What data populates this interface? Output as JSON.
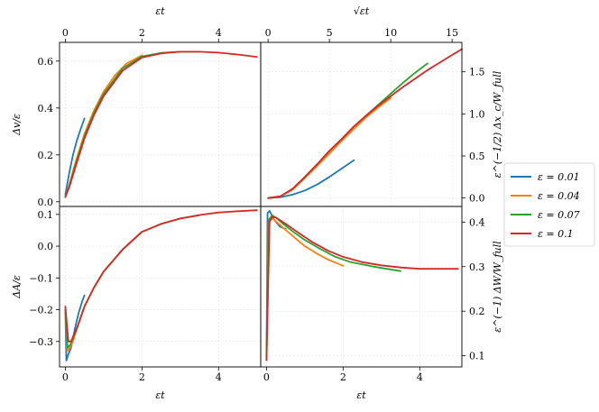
{
  "colors": {
    "eps_0.01": "#1f77b4",
    "eps_0.04": "#ff7f0e",
    "eps_0.07": "#2ca02c",
    "eps_0.1": "#d62728"
  },
  "legend": {
    "placement": "right",
    "entries": [
      "ε = 0.01",
      "ε = 0.04",
      "ε = 0.07",
      "ε = 0.1"
    ]
  },
  "chart_data": [
    {
      "id": "top-left",
      "type": "line",
      "title": "",
      "xlabel": "εt",
      "ylabel": "Δv/ε",
      "xlim": [
        -0.15,
        5.1
      ],
      "ylim": [
        -0.02,
        0.68
      ],
      "xticks": [
        "0",
        "2",
        "4"
      ],
      "xtick_values": [
        0,
        2,
        4
      ],
      "yticks": [
        "0.0",
        "0.2",
        "0.4",
        "0.6"
      ],
      "ytick_values": [
        0.0,
        0.2,
        0.4,
        0.6
      ],
      "grid": true,
      "series": [
        {
          "name": "ε = 0.01",
          "points": [
            [
              0.0,
              0.03
            ],
            [
              0.1,
              0.12
            ],
            [
              0.2,
              0.2
            ],
            [
              0.3,
              0.26
            ],
            [
              0.4,
              0.31
            ],
            [
              0.5,
              0.355
            ]
          ]
        },
        {
          "name": "ε = 0.04",
          "points": [
            [
              0.0,
              0.02
            ],
            [
              0.1,
              0.07
            ],
            [
              0.25,
              0.16
            ],
            [
              0.5,
              0.29
            ],
            [
              0.75,
              0.39
            ],
            [
              1.0,
              0.47
            ],
            [
              1.3,
              0.54
            ],
            [
              1.6,
              0.59
            ],
            [
              2.0,
              0.625
            ]
          ]
        },
        {
          "name": "ε = 0.07",
          "points": [
            [
              0.0,
              0.02
            ],
            [
              0.1,
              0.065
            ],
            [
              0.25,
              0.15
            ],
            [
              0.5,
              0.28
            ],
            [
              0.75,
              0.38
            ],
            [
              1.0,
              0.46
            ],
            [
              1.5,
              0.57
            ],
            [
              2.0,
              0.62
            ],
            [
              2.5,
              0.635
            ],
            [
              3.0,
              0.64
            ],
            [
              3.5,
              0.64
            ]
          ]
        },
        {
          "name": "ε = 0.1",
          "points": [
            [
              0.0,
              0.02
            ],
            [
              0.1,
              0.06
            ],
            [
              0.25,
              0.14
            ],
            [
              0.5,
              0.27
            ],
            [
              0.75,
              0.37
            ],
            [
              1.0,
              0.45
            ],
            [
              1.5,
              0.56
            ],
            [
              2.0,
              0.615
            ],
            [
              2.5,
              0.633
            ],
            [
              3.0,
              0.64
            ],
            [
              3.5,
              0.64
            ],
            [
              4.0,
              0.636
            ],
            [
              4.5,
              0.628
            ],
            [
              5.0,
              0.618
            ]
          ]
        }
      ]
    },
    {
      "id": "top-right",
      "type": "line",
      "title": "",
      "xlabel": "√εt",
      "ylabel": "ε^(−1/2) Δx_c/W_full",
      "xlim": [
        -0.6,
        15.8
      ],
      "ylim": [
        -0.1,
        1.85
      ],
      "xticks": [
        "0",
        "5",
        "10",
        "15"
      ],
      "xtick_values": [
        0,
        5,
        10,
        15
      ],
      "yticks": [
        "0.0",
        "0.5",
        "1.0",
        "1.5"
      ],
      "ytick_values": [
        0.0,
        0.5,
        1.0,
        1.5
      ],
      "grid": true,
      "series": [
        {
          "name": "ε = 0.01",
          "points": [
            [
              0.0,
              0.0
            ],
            [
              1.0,
              0.01
            ],
            [
              2.0,
              0.04
            ],
            [
              3.0,
              0.09
            ],
            [
              4.0,
              0.16
            ],
            [
              5.0,
              0.25
            ],
            [
              6.0,
              0.35
            ],
            [
              7.0,
              0.45
            ]
          ]
        },
        {
          "name": "ε = 0.04",
          "points": [
            [
              0.0,
              0.0
            ],
            [
              1.0,
              0.02
            ],
            [
              2.0,
              0.1
            ],
            [
              3.0,
              0.24
            ],
            [
              4.0,
              0.38
            ],
            [
              5.0,
              0.53
            ],
            [
              6.0,
              0.68
            ],
            [
              7.0,
              0.82
            ],
            [
              8.0,
              0.96
            ],
            [
              9.0,
              1.08
            ],
            [
              10.0,
              1.19
            ]
          ]
        },
        {
          "name": "ε = 0.07",
          "points": [
            [
              0.0,
              0.0
            ],
            [
              1.0,
              0.02
            ],
            [
              2.0,
              0.11
            ],
            [
              3.0,
              0.25
            ],
            [
              4.0,
              0.4
            ],
            [
              5.0,
              0.56
            ],
            [
              6.0,
              0.7
            ],
            [
              7.0,
              0.85
            ],
            [
              8.0,
              0.98
            ],
            [
              9.0,
              1.11
            ],
            [
              10.0,
              1.24
            ],
            [
              11.0,
              1.37
            ],
            [
              12.0,
              1.49
            ],
            [
              13.0,
              1.6
            ]
          ]
        },
        {
          "name": "ε = 0.1",
          "points": [
            [
              0.0,
              0.0
            ],
            [
              1.0,
              0.02
            ],
            [
              2.0,
              0.11
            ],
            [
              3.0,
              0.25
            ],
            [
              4.0,
              0.4
            ],
            [
              5.0,
              0.56
            ],
            [
              6.0,
              0.7
            ],
            [
              7.0,
              0.85
            ],
            [
              8.0,
              0.98
            ],
            [
              9.0,
              1.1
            ],
            [
              10.0,
              1.21
            ],
            [
              11.0,
              1.32
            ],
            [
              12.0,
              1.42
            ],
            [
              13.0,
              1.52
            ],
            [
              14.0,
              1.61
            ],
            [
              15.0,
              1.7
            ],
            [
              15.8,
              1.77
            ]
          ]
        }
      ]
    },
    {
      "id": "bottom-left",
      "type": "line",
      "title": "",
      "xlabel": "εt",
      "ylabel": "ΔA/ε",
      "xlim": [
        -0.15,
        5.1
      ],
      "ylim": [
        -0.38,
        0.125
      ],
      "xticks": [
        "0",
        "2",
        "4"
      ],
      "xtick_values": [
        0,
        2,
        4
      ],
      "yticks": [
        "−0.3",
        "−0.2",
        "−0.1",
        "0.0",
        "0.1"
      ],
      "ytick_values": [
        -0.3,
        -0.2,
        -0.1,
        0.0,
        0.1
      ],
      "grid": true,
      "series": [
        {
          "name": "ε = 0.01",
          "points": [
            [
              0.0,
              -0.2
            ],
            [
              0.03,
              -0.36
            ],
            [
              0.08,
              -0.34
            ],
            [
              0.15,
              -0.32
            ],
            [
              0.25,
              -0.26
            ],
            [
              0.35,
              -0.21
            ],
            [
              0.45,
              -0.17
            ],
            [
              0.5,
              -0.155
            ]
          ]
        },
        {
          "name": "ε = 0.04",
          "points": [
            [
              0.0,
              -0.2
            ],
            [
              0.05,
              -0.33
            ],
            [
              0.12,
              -0.32
            ],
            [
              0.2,
              -0.3
            ],
            [
              0.3,
              -0.26
            ],
            [
              0.5,
              -0.19
            ],
            [
              0.75,
              -0.13
            ],
            [
              1.0,
              -0.08
            ],
            [
              1.5,
              -0.01
            ],
            [
              2.0,
              0.045
            ]
          ]
        },
        {
          "name": "ε = 0.07",
          "points": [
            [
              0.0,
              -0.2
            ],
            [
              0.06,
              -0.32
            ],
            [
              0.13,
              -0.31
            ],
            [
              0.2,
              -0.29
            ],
            [
              0.3,
              -0.26
            ],
            [
              0.5,
              -0.19
            ],
            [
              0.75,
              -0.13
            ],
            [
              1.0,
              -0.08
            ],
            [
              1.5,
              -0.01
            ],
            [
              2.0,
              0.045
            ],
            [
              2.5,
              0.07
            ],
            [
              3.0,
              0.087
            ],
            [
              3.5,
              0.097
            ]
          ]
        },
        {
          "name": "ε = 0.1",
          "points": [
            [
              0.0,
              -0.19
            ],
            [
              0.08,
              -0.3
            ],
            [
              0.15,
              -0.3
            ],
            [
              0.22,
              -0.28
            ],
            [
              0.3,
              -0.26
            ],
            [
              0.5,
              -0.19
            ],
            [
              0.75,
              -0.13
            ],
            [
              1.0,
              -0.08
            ],
            [
              1.5,
              -0.01
            ],
            [
              2.0,
              0.045
            ],
            [
              2.5,
              0.07
            ],
            [
              3.0,
              0.087
            ],
            [
              3.5,
              0.098
            ],
            [
              4.0,
              0.106
            ],
            [
              4.5,
              0.11
            ],
            [
              5.0,
              0.113
            ]
          ]
        }
      ]
    },
    {
      "id": "bottom-right",
      "type": "line",
      "title": "",
      "xlabel": "εt",
      "ylabel": "ε^(−1) ΔW/W_full",
      "xlim": [
        -0.15,
        5.1
      ],
      "ylim": [
        0.075,
        0.435
      ],
      "xticks": [
        "0",
        "2",
        "4"
      ],
      "xtick_values": [
        0,
        2,
        4
      ],
      "yticks": [
        "0.1",
        "0.2",
        "0.3",
        "0.4"
      ],
      "ytick_values": [
        0.1,
        0.2,
        0.3,
        0.4
      ],
      "grid": true,
      "series": [
        {
          "name": "ε = 0.01",
          "points": [
            [
              0.0,
              0.09
            ],
            [
              0.03,
              0.42
            ],
            [
              0.08,
              0.425
            ],
            [
              0.2,
              0.405
            ],
            [
              0.35,
              0.39
            ],
            [
              0.45,
              0.386
            ],
            [
              0.5,
              0.385
            ]
          ]
        },
        {
          "name": "ε = 0.04",
          "points": [
            [
              0.0,
              0.09
            ],
            [
              0.05,
              0.4
            ],
            [
              0.12,
              0.41
            ],
            [
              0.2,
              0.405
            ],
            [
              0.4,
              0.39
            ],
            [
              0.6,
              0.375
            ],
            [
              0.8,
              0.36
            ],
            [
              1.0,
              0.346
            ],
            [
              1.3,
              0.33
            ],
            [
              1.6,
              0.316
            ],
            [
              2.0,
              0.302
            ]
          ]
        },
        {
          "name": "ε = 0.07",
          "points": [
            [
              0.0,
              0.09
            ],
            [
              0.06,
              0.405
            ],
            [
              0.15,
              0.415
            ],
            [
              0.25,
              0.41
            ],
            [
              0.45,
              0.395
            ],
            [
              0.7,
              0.378
            ],
            [
              1.0,
              0.36
            ],
            [
              1.4,
              0.34
            ],
            [
              1.8,
              0.322
            ],
            [
              2.2,
              0.31
            ],
            [
              2.8,
              0.3
            ],
            [
              3.5,
              0.29
            ]
          ]
        },
        {
          "name": "ε = 0.1",
          "points": [
            [
              0.0,
              0.09
            ],
            [
              0.08,
              0.4
            ],
            [
              0.15,
              0.412
            ],
            [
              0.25,
              0.41
            ],
            [
              0.5,
              0.396
            ],
            [
              0.8,
              0.378
            ],
            [
              1.2,
              0.355
            ],
            [
              1.6,
              0.336
            ],
            [
              2.0,
              0.322
            ],
            [
              2.5,
              0.31
            ],
            [
              3.0,
              0.303
            ],
            [
              3.5,
              0.298
            ],
            [
              4.0,
              0.295
            ],
            [
              4.5,
              0.295
            ],
            [
              5.0,
              0.295
            ]
          ]
        }
      ]
    }
  ]
}
